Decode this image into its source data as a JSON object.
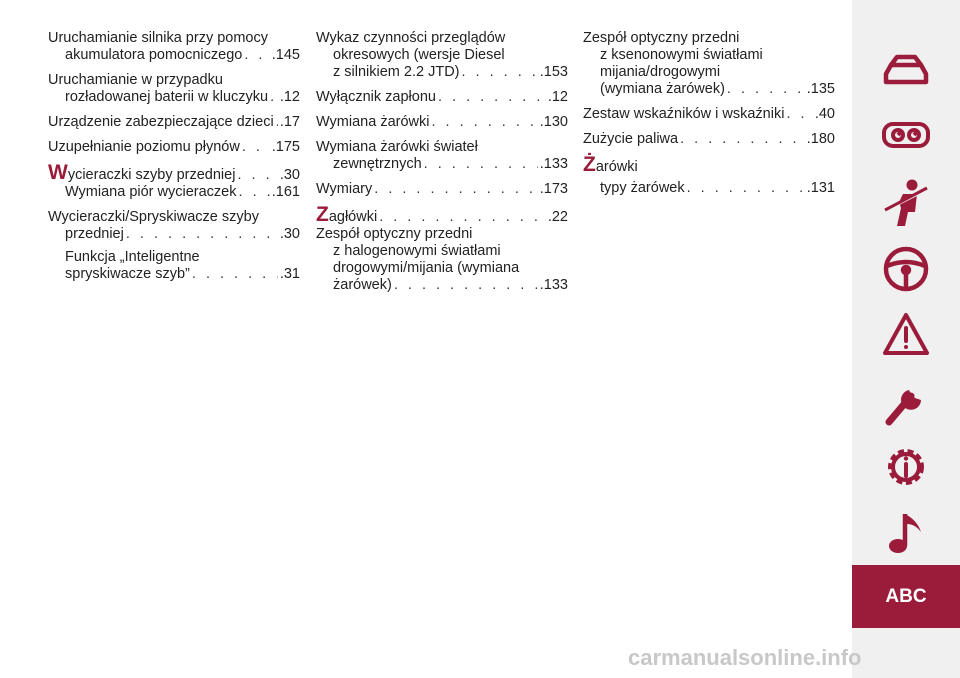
{
  "col1": {
    "e1_l1": "Uruchamianie silnika przy pomocy",
    "e1_l2": "akumulatora pomocniczego",
    "e1_p": ".145",
    "e2_l1": "Uruchamianie w przypadku",
    "e2_l2": "rozładowanej baterii w kluczyku",
    "e2_p": ".12",
    "e3_t": "Urządzenie zabezpieczające dzieci",
    "e3_p": ".17",
    "e4_t": "Uzupełnianie poziomu płynów",
    "e4_p": ".175",
    "w_letter": "W",
    "w1_t": "ycieraczki szyby przedniej",
    "w1_p": ".30",
    "w1_sub_t": "Wymiana piór wycieraczek",
    "w1_sub_p": ".161",
    "w2_l1": "Wycieraczki/Spryskiwacze szyby",
    "w2_l2": "przedniej",
    "w2_p": ".30",
    "w2_sub_l1": "Funkcja „Inteligentne",
    "w2_sub_l2": "spryskiwacze szyb”",
    "w2_sub_p": ".31"
  },
  "col2": {
    "e1_l1": "Wykaz czynności przeglądów",
    "e1_l2": "okresowych (wersje Diesel",
    "e1_l3": "z silnikiem 2.2 JTD)",
    "e1_p": ".153",
    "e2_t": "Wyłącznik zapłonu",
    "e2_p": ".12",
    "e3_t": "Wymiana żarówki",
    "e3_p": ".130",
    "e4_l1": "Wymiana żarówki świateł",
    "e4_l2": "zewnętrznych",
    "e4_p": ".133",
    "e5_t": "Wymiary",
    "e5_p": ".173",
    "z_letter": "Z",
    "z1_t": "agłówki",
    "z1_p": ".22",
    "z2_l1": "Zespół optyczny przedni",
    "z2_l2": "z halogenowymi światłami",
    "z2_l3": "drogowymi/mijania (wymiana",
    "z2_l4": "żarówek)",
    "z2_p": ".133"
  },
  "col3": {
    "e1_l1": "Zespół optyczny przedni",
    "e1_l2": "z ksenonowymi światłami",
    "e1_l3": "mijania/drogowymi",
    "e1_l4": "(wymiana żarówek)",
    "e1_p": ".135",
    "e2_t": "Zestaw wskaźników i wskaźniki",
    "e2_p": ".40",
    "e3_t": "Zużycie paliwa",
    "e3_p": ".180",
    "zz_letter": "Ż",
    "zz_t": "arówki",
    "zz_sub_t": "typy żarówek",
    "zz_sub_p": ".131"
  },
  "sidebar": {
    "icons": [
      "car-icon",
      "dashboard-gauges-icon",
      "seatbelt-person-icon",
      "steering-wheel-icon",
      "warning-triangle-icon",
      "wrench-icon",
      "info-gear-icon",
      "music-note-icon"
    ],
    "active_tab": "ABC",
    "accent_color": "#9b1b3b",
    "background_color": "#f0f0f0"
  },
  "watermark": "carmanualsonline.info"
}
